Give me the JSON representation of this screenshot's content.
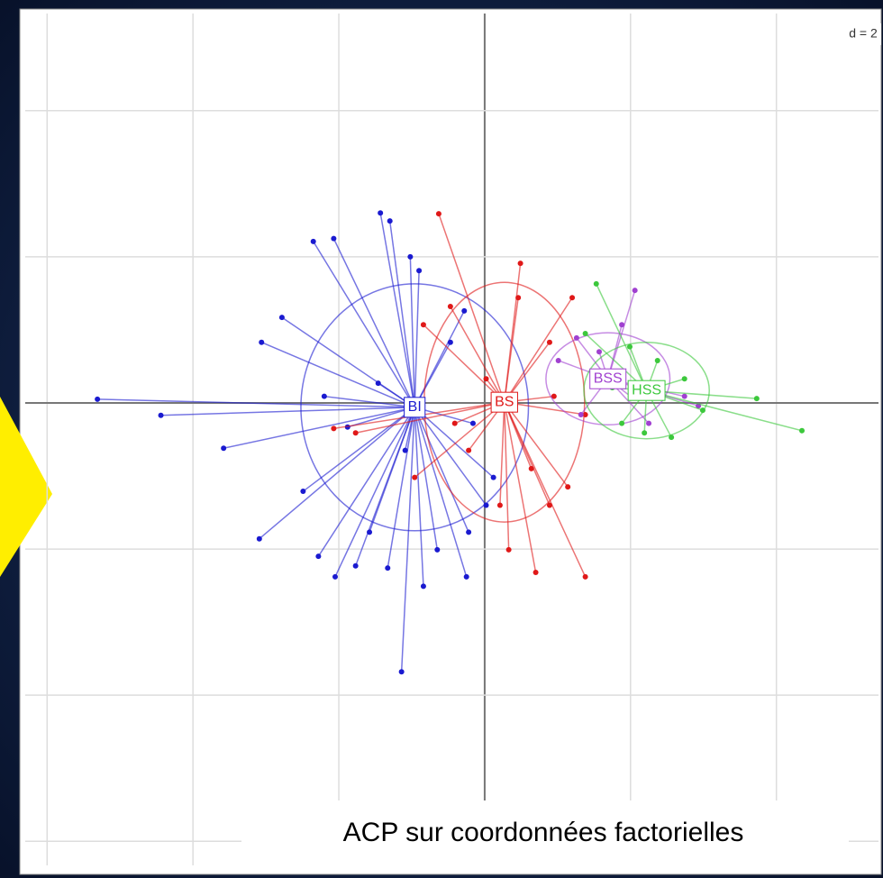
{
  "chart_data": {
    "type": "scatter",
    "grid_label": "d = 2",
    "caption": "ACP sur coordonnées factorielles",
    "xlim": [
      -6.3,
      5.4
    ],
    "ylim": [
      -6.33,
      5.33
    ],
    "xticks": [
      -6,
      -4,
      -2,
      0,
      2,
      4
    ],
    "yticks": [
      -6,
      -4,
      -2,
      0,
      2,
      4
    ],
    "grid": true,
    "series": [
      {
        "name": "BI",
        "color": "#1a1ad0",
        "center": [
          -0.96,
          -0.06
        ],
        "ellipse_radii": [
          1.56,
          1.69
        ],
        "x": [
          -5.31,
          -4.44,
          -3.58,
          -3.09,
          -3.06,
          -2.78,
          -2.35,
          -2.07,
          -1.43,
          -1.3,
          -1.02,
          -0.9,
          -2.49,
          -2.28,
          -2.05,
          -1.77,
          -1.58,
          -1.33,
          -1.14,
          -0.84,
          -0.65,
          -0.25,
          -0.22,
          0.02,
          0.12,
          -0.16,
          -0.47,
          -0.28,
          -1.46,
          -2.2,
          -1.88,
          -1.09
        ],
        "y": [
          0.05,
          -0.17,
          -0.62,
          -1.86,
          0.83,
          1.17,
          2.21,
          2.25,
          2.6,
          2.49,
          2.0,
          1.81,
          -1.21,
          -2.1,
          -2.38,
          -2.23,
          -1.77,
          -2.26,
          -3.68,
          -2.51,
          -2.01,
          -2.38,
          -1.77,
          -1.4,
          -1.02,
          -0.28,
          0.83,
          1.26,
          0.27,
          0.09,
          -0.33,
          -0.65
        ]
      },
      {
        "name": "BS",
        "color": "#e01818",
        "center": [
          0.27,
          0.01
        ],
        "ellipse_radii": [
          1.1,
          1.64
        ],
        "x": [
          -0.63,
          0.49,
          0.46,
          1.2,
          0.89,
          -0.47,
          -0.84,
          -2.07,
          -1.77,
          -0.96,
          -0.22,
          0.64,
          0.89,
          1.14,
          0.7,
          1.38,
          0.33,
          0.02,
          0.95,
          1.38,
          0.21,
          -0.41
        ],
        "y": [
          2.59,
          1.91,
          1.44,
          1.44,
          0.83,
          1.32,
          1.07,
          -0.35,
          -0.41,
          -1.02,
          -0.65,
          -0.9,
          -1.4,
          -1.15,
          -2.32,
          -2.38,
          -2.01,
          0.33,
          0.09,
          -0.16,
          -1.4,
          -0.28
        ]
      },
      {
        "name": "BSS",
        "color": "#a040d0",
        "center": [
          1.69,
          0.33
        ],
        "ellipse_radii": [
          0.85,
          0.63
        ],
        "x": [
          2.06,
          1.88,
          1.26,
          1.01,
          1.32,
          2.0,
          2.74,
          2.93,
          1.57,
          2.25
        ],
        "y": [
          1.54,
          1.07,
          0.89,
          0.58,
          -0.16,
          0.09,
          0.09,
          -0.04,
          0.7,
          -0.28
        ]
      },
      {
        "name": "HSS",
        "color": "#3cc83c",
        "center": [
          2.22,
          0.17
        ],
        "ellipse_radii": [
          0.86,
          0.66
        ],
        "x": [
          1.53,
          1.38,
          1.99,
          3.73,
          4.35,
          2.99,
          2.56,
          2.19,
          1.88,
          2.74,
          2.37,
          1.75
        ],
        "y": [
          1.63,
          0.95,
          0.77,
          0.06,
          -0.38,
          -0.1,
          -0.47,
          -0.41,
          -0.28,
          0.33,
          0.58,
          0.21
        ]
      }
    ]
  }
}
